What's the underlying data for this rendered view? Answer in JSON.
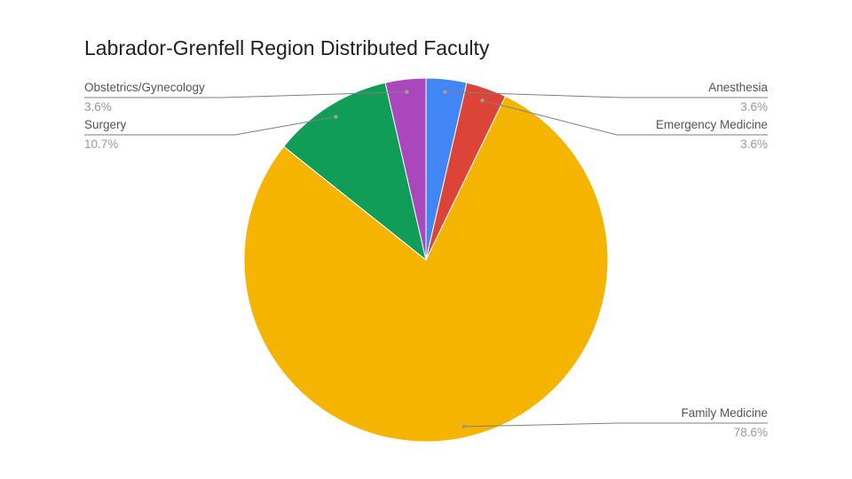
{
  "chart_data": {
    "type": "pie",
    "title": "Labrador-Grenfell Region Distributed Faculty",
    "slices": [
      {
        "label": "Anesthesia",
        "percent_label": "3.6%",
        "value": 3.6,
        "color": "#4285f4",
        "side": "right"
      },
      {
        "label": "Emergency Medicine",
        "percent_label": "3.6%",
        "value": 3.6,
        "color": "#db4437",
        "side": "right"
      },
      {
        "label": "Family Medicine",
        "percent_label": "78.6%",
        "value": 78.6,
        "color": "#f4b400",
        "side": "right"
      },
      {
        "label": "Surgery",
        "percent_label": "10.7%",
        "value": 10.7,
        "color": "#0f9d58",
        "side": "left"
      },
      {
        "label": "Obstetrics/Gynecology",
        "percent_label": "3.6%",
        "value": 3.6,
        "color": "#ab47bc",
        "side": "left"
      }
    ]
  }
}
